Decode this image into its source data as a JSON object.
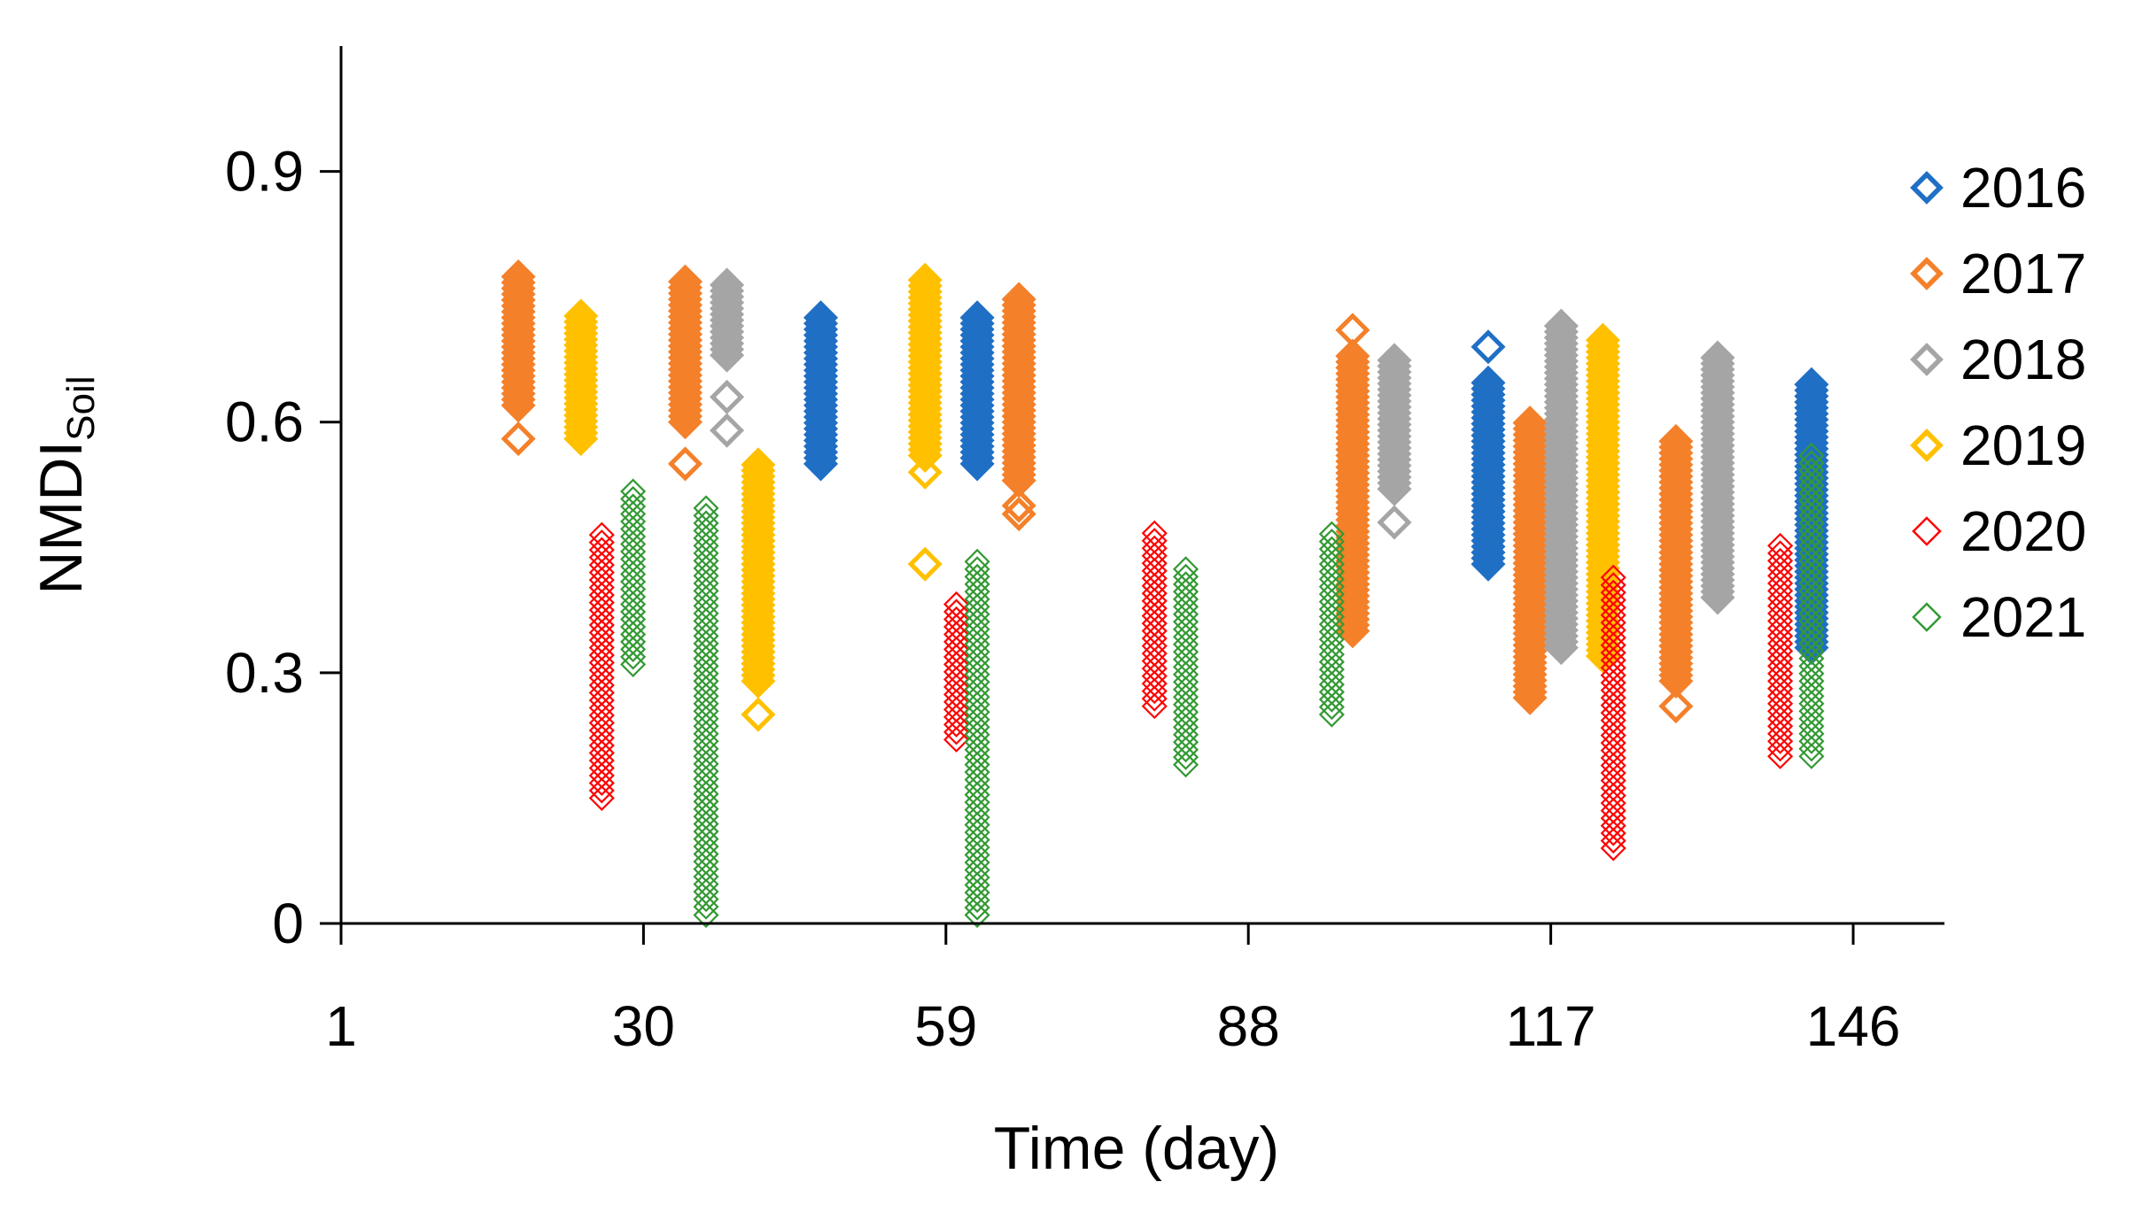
{
  "chart_data": {
    "type": "scatter",
    "marker": "diamond",
    "xlabel": "Time (day)",
    "ylabel": {
      "main": "NMDI",
      "sub": "Soil"
    },
    "xlim": [
      1,
      161
    ],
    "ylim": [
      0,
      1.05
    ],
    "xticks": [
      1,
      30,
      59,
      88,
      117,
      146
    ],
    "yticks": [
      0,
      0.3,
      0.6,
      0.9
    ],
    "ytick_labels": [
      "0",
      "0.3",
      "0.6",
      "0.9"
    ],
    "legend_position": "right",
    "grid": false,
    "series": [
      {
        "name": "2016",
        "color": "#1F6FC5",
        "clusters": [
          {
            "x": 47,
            "min": 0.55,
            "max": 0.73,
            "outliers": []
          },
          {
            "x": 62,
            "min": 0.55,
            "max": 0.73,
            "outliers": []
          },
          {
            "x": 111,
            "min": 0.43,
            "max": 0.65,
            "outliers": [
              0.69
            ]
          },
          {
            "x": 142,
            "min": 0.33,
            "max": 0.65,
            "outliers": []
          }
        ]
      },
      {
        "name": "2017",
        "color": "#F4802A",
        "clusters": [
          {
            "x": 18,
            "min": 0.62,
            "max": 0.78,
            "outliers": [
              0.58
            ]
          },
          {
            "x": 34,
            "min": 0.6,
            "max": 0.77,
            "outliers": [
              0.55
            ]
          },
          {
            "x": 66,
            "min": 0.53,
            "max": 0.75,
            "outliers": [
              0.5,
              0.49
            ]
          },
          {
            "x": 98,
            "min": 0.35,
            "max": 0.68,
            "outliers": [
              0.71
            ]
          },
          {
            "x": 115,
            "min": 0.27,
            "max": 0.6,
            "outliers": []
          },
          {
            "x": 129,
            "min": 0.29,
            "max": 0.58,
            "outliers": [
              0.26
            ]
          }
        ]
      },
      {
        "name": "2018",
        "color": "#A5A5A5",
        "clusters": [
          {
            "x": 38,
            "min": 0.68,
            "max": 0.77,
            "outliers": [
              0.63,
              0.59
            ]
          },
          {
            "x": 102,
            "min": 0.52,
            "max": 0.68,
            "outliers": [
              0.48
            ]
          },
          {
            "x": 118,
            "min": 0.33,
            "max": 0.72,
            "outliers": []
          },
          {
            "x": 133,
            "min": 0.39,
            "max": 0.68,
            "outliers": []
          }
        ]
      },
      {
        "name": "2019",
        "color": "#FFC000",
        "clusters": [
          {
            "x": 24,
            "min": 0.58,
            "max": 0.73,
            "outliers": []
          },
          {
            "x": 41,
            "min": 0.29,
            "max": 0.55,
            "outliers": [
              0.25
            ]
          },
          {
            "x": 57,
            "min": 0.56,
            "max": 0.77,
            "outliers": [
              0.54,
              0.43
            ]
          },
          {
            "x": 122,
            "min": 0.32,
            "max": 0.7,
            "outliers": []
          }
        ]
      },
      {
        "name": "2020",
        "color": "#FF0000",
        "clusters": [
          {
            "x": 26,
            "min": 0.15,
            "max": 0.47,
            "outliers": []
          },
          {
            "x": 60,
            "min": 0.22,
            "max": 0.39,
            "outliers": []
          },
          {
            "x": 79,
            "min": 0.26,
            "max": 0.47,
            "outliers": []
          },
          {
            "x": 123,
            "min": 0.09,
            "max": 0.42,
            "outliers": []
          },
          {
            "x": 139,
            "min": 0.2,
            "max": 0.46,
            "outliers": []
          }
        ]
      },
      {
        "name": "2021",
        "color": "#339933",
        "clusters": [
          {
            "x": 29,
            "min": 0.31,
            "max": 0.52,
            "outliers": []
          },
          {
            "x": 36,
            "min": 0.02,
            "max": 0.5,
            "outliers": [
              0.01
            ]
          },
          {
            "x": 62,
            "min": 0.01,
            "max": 0.44,
            "outliers": []
          },
          {
            "x": 82,
            "min": 0.19,
            "max": 0.43,
            "outliers": []
          },
          {
            "x": 96,
            "min": 0.25,
            "max": 0.47,
            "outliers": []
          },
          {
            "x": 142,
            "min": 0.2,
            "max": 0.56,
            "outliers": []
          }
        ]
      }
    ]
  }
}
